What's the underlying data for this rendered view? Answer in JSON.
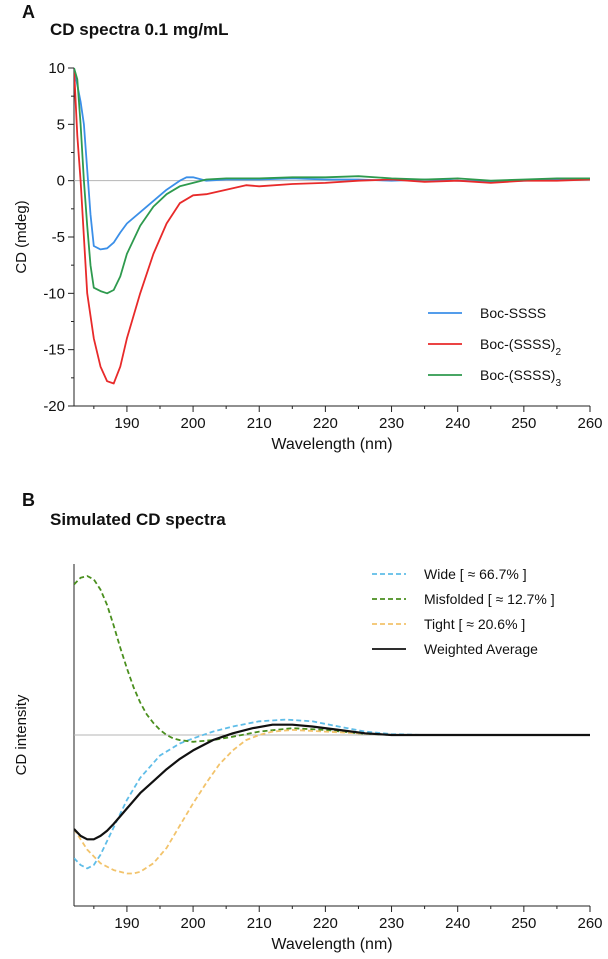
{
  "chart_data": [
    {
      "type": "line",
      "panel_label": "A",
      "title": "CD spectra 0.1 mg/mL",
      "xlabel": "Wavelength (nm)",
      "ylabel": "CD (mdeg)",
      "xlim": [
        182,
        260
      ],
      "ylim": [
        -20,
        10
      ],
      "xticks": [
        190,
        200,
        210,
        220,
        230,
        240,
        250,
        260
      ],
      "yticks": [
        10,
        5,
        0,
        -5,
        -10,
        -15,
        -20
      ],
      "zero_line": true,
      "legend_position": "bottom-right",
      "series": [
        {
          "name": "Boc-SSSS",
          "color": "#3b8fe8",
          "x": [
            182,
            182.5,
            183,
            183.5,
            184,
            184.5,
            185,
            186,
            187,
            188,
            189,
            190,
            192,
            194,
            196,
            198,
            199,
            200,
            202,
            205,
            210,
            215,
            220,
            225,
            230,
            235,
            240,
            245,
            250,
            255,
            260
          ],
          "y": [
            10,
            8.5,
            7,
            5,
            1,
            -3,
            -5.8,
            -6.1,
            -6,
            -5.5,
            -4.6,
            -3.8,
            -2.8,
            -1.8,
            -0.8,
            0,
            0.3,
            0.3,
            0,
            0.1,
            0.1,
            0.2,
            0.1,
            0.1,
            0,
            0.1,
            0,
            -0.1,
            0,
            0.1,
            0.2
          ]
        },
        {
          "name": "Boc-(SSSS)2",
          "color": "#e82a2a",
          "x": [
            182,
            182.5,
            183,
            183.5,
            184,
            185,
            186,
            187,
            188,
            189,
            190,
            192,
            194,
            196,
            198,
            200,
            202,
            205,
            208,
            210,
            215,
            220,
            225,
            230,
            235,
            240,
            245,
            250,
            255,
            260
          ],
          "y": [
            10,
            4,
            0,
            -5,
            -10,
            -14,
            -16.5,
            -17.8,
            -18,
            -16.5,
            -14,
            -10,
            -6.5,
            -3.8,
            -2,
            -1.3,
            -1.2,
            -0.8,
            -0.4,
            -0.5,
            -0.3,
            -0.2,
            0,
            0.1,
            -0.1,
            0,
            -0.2,
            0,
            0,
            0.1
          ]
        },
        {
          "name": "Boc-(SSSS)3",
          "color": "#2e9a4e",
          "x": [
            182,
            182.5,
            183,
            183.5,
            184,
            184.5,
            185,
            186,
            187,
            188,
            189,
            190,
            192,
            194,
            196,
            198,
            200,
            202,
            205,
            210,
            215,
            220,
            225,
            230,
            235,
            240,
            245,
            250,
            255,
            260
          ],
          "y": [
            10,
            9,
            5,
            0,
            -4,
            -7.5,
            -9.5,
            -9.8,
            -10,
            -9.7,
            -8.5,
            -6.5,
            -4,
            -2.3,
            -1.2,
            -0.5,
            -0.2,
            0.1,
            0.2,
            0.2,
            0.3,
            0.3,
            0.4,
            0.2,
            0.1,
            0.2,
            0,
            0.1,
            0.2,
            0.2
          ]
        }
      ]
    },
    {
      "type": "line",
      "panel_label": "B",
      "title": "Simulated CD spectra",
      "xlabel": "Wavelength (nm)",
      "ylabel": "CD intensity",
      "xlim": [
        182,
        260
      ],
      "ylim": [
        -1,
        1
      ],
      "xticks": [
        190,
        200,
        210,
        220,
        230,
        240,
        250,
        260
      ],
      "y_tick_labels_shown": false,
      "zero_line": true,
      "legend_position": "top-right",
      "series": [
        {
          "name": "Wide [ ≈ 66.7% ]",
          "color": "#5fbde8",
          "dash": "dashed",
          "x": [
            182,
            183,
            184,
            185,
            186,
            188,
            190,
            192,
            195,
            198,
            200,
            203,
            206,
            210,
            214,
            218,
            222,
            226,
            230,
            235,
            240,
            250,
            260
          ],
          "y": [
            -0.72,
            -0.76,
            -0.78,
            -0.76,
            -0.7,
            -0.54,
            -0.38,
            -0.25,
            -0.12,
            -0.05,
            -0.02,
            0.02,
            0.05,
            0.08,
            0.09,
            0.08,
            0.05,
            0.02,
            0.005,
            0,
            0,
            0,
            0
          ]
        },
        {
          "name": "Misfolded [ ≈ 12.7% ]",
          "color": "#4a8f1e",
          "dash": "dashed",
          "x": [
            182,
            183,
            184,
            185,
            186,
            187,
            188,
            189,
            190,
            191,
            192,
            193,
            194,
            195,
            196,
            197,
            198,
            200,
            203,
            206,
            210,
            215,
            220,
            225,
            230,
            240,
            250,
            260
          ],
          "y": [
            0.88,
            0.92,
            0.93,
            0.91,
            0.85,
            0.76,
            0.64,
            0.51,
            0.39,
            0.28,
            0.19,
            0.12,
            0.07,
            0.03,
            0.0,
            -0.02,
            -0.03,
            -0.04,
            -0.03,
            -0.01,
            0.02,
            0.04,
            0.03,
            0.01,
            0.0,
            0,
            0,
            0
          ]
        },
        {
          "name": "Tight [ ≈ 20.6% ]",
          "color": "#f2c36b",
          "dash": "dashed",
          "x": [
            182,
            184,
            186,
            188,
            190,
            191,
            192,
            194,
            196,
            198,
            200,
            202,
            204,
            206,
            208,
            210,
            212,
            215,
            220,
            225,
            230,
            240,
            250,
            260
          ],
          "y": [
            -0.55,
            -0.67,
            -0.75,
            -0.79,
            -0.81,
            -0.81,
            -0.8,
            -0.75,
            -0.66,
            -0.53,
            -0.4,
            -0.28,
            -0.17,
            -0.09,
            -0.03,
            0.0,
            0.02,
            0.03,
            0.02,
            0.01,
            0.0,
            0,
            0,
            0
          ]
        },
        {
          "name": "Weighted Average",
          "color": "#111111",
          "dash": "solid",
          "x": [
            182,
            183,
            184,
            185,
            186,
            187,
            188,
            190,
            192,
            194,
            196,
            198,
            200,
            203,
            206,
            209,
            212,
            215,
            218,
            222,
            226,
            230,
            235,
            240,
            250,
            260
          ],
          "y": [
            -0.55,
            -0.59,
            -0.61,
            -0.61,
            -0.59,
            -0.56,
            -0.52,
            -0.43,
            -0.34,
            -0.27,
            -0.2,
            -0.14,
            -0.09,
            -0.03,
            0.01,
            0.04,
            0.06,
            0.06,
            0.05,
            0.03,
            0.01,
            0.0,
            0,
            0,
            0,
            0
          ]
        }
      ]
    }
  ]
}
